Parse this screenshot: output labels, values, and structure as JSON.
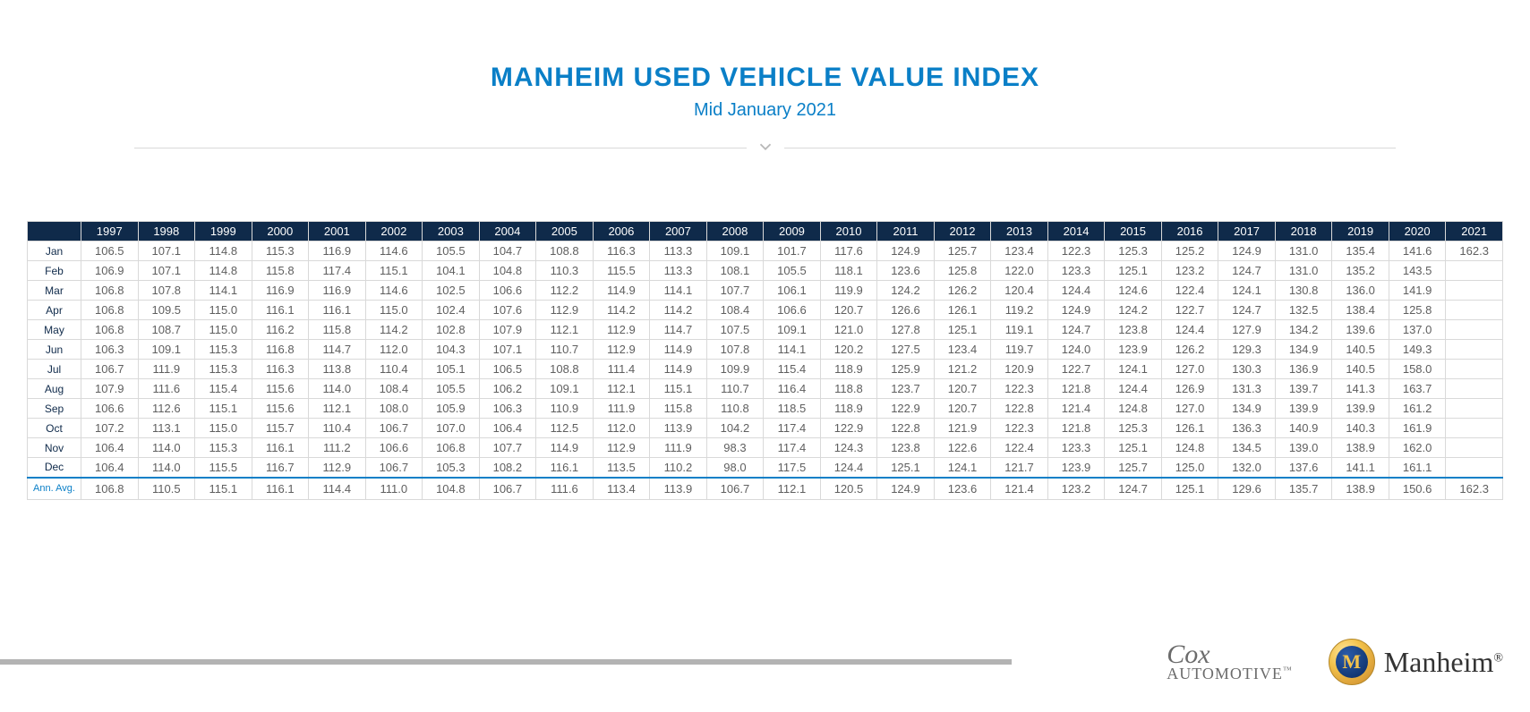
{
  "colors": {
    "title": "#0a7fc7",
    "subtitle": "#0a7fc7",
    "header_bg": "#0f2a4a",
    "header_fg": "#ffffff",
    "row_label": "#0f2a4a",
    "cell_text": "#5f5f5f",
    "avg_label": "#0a7fc7",
    "grid": "#d9d9d9"
  },
  "header": {
    "title": "MANHEIM USED VEHICLE VALUE INDEX",
    "subtitle": "Mid January 2021"
  },
  "table": {
    "years": [
      "1997",
      "1998",
      "1999",
      "2000",
      "2001",
      "2002",
      "2003",
      "2004",
      "2005",
      "2006",
      "2007",
      "2008",
      "2009",
      "2010",
      "2011",
      "2012",
      "2013",
      "2014",
      "2015",
      "2016",
      "2017",
      "2018",
      "2019",
      "2020",
      "2021"
    ],
    "row_labels": [
      "Jan",
      "Feb",
      "Mar",
      "Apr",
      "May",
      "Jun",
      "Jul",
      "Aug",
      "Sep",
      "Oct",
      "Nov",
      "Dec"
    ],
    "rows": [
      [
        "106.5",
        "107.1",
        "114.8",
        "115.3",
        "116.9",
        "114.6",
        "105.5",
        "104.7",
        "108.8",
        "116.3",
        "113.3",
        "109.1",
        "101.7",
        "117.6",
        "124.9",
        "125.7",
        "123.4",
        "122.3",
        "125.3",
        "125.2",
        "124.9",
        "131.0",
        "135.4",
        "141.6",
        "162.3"
      ],
      [
        "106.9",
        "107.1",
        "114.8",
        "115.8",
        "117.4",
        "115.1",
        "104.1",
        "104.8",
        "110.3",
        "115.5",
        "113.3",
        "108.1",
        "105.5",
        "118.1",
        "123.6",
        "125.8",
        "122.0",
        "123.3",
        "125.1",
        "123.2",
        "124.7",
        "131.0",
        "135.2",
        "143.5",
        ""
      ],
      [
        "106.8",
        "107.8",
        "114.1",
        "116.9",
        "116.9",
        "114.6",
        "102.5",
        "106.6",
        "112.2",
        "114.9",
        "114.1",
        "107.7",
        "106.1",
        "119.9",
        "124.2",
        "126.2",
        "120.4",
        "124.4",
        "124.6",
        "122.4",
        "124.1",
        "130.8",
        "136.0",
        "141.9",
        ""
      ],
      [
        "106.8",
        "109.5",
        "115.0",
        "116.1",
        "116.1",
        "115.0",
        "102.4",
        "107.6",
        "112.9",
        "114.2",
        "114.2",
        "108.4",
        "106.6",
        "120.7",
        "126.6",
        "126.1",
        "119.2",
        "124.9",
        "124.2",
        "122.7",
        "124.7",
        "132.5",
        "138.4",
        "125.8",
        ""
      ],
      [
        "106.8",
        "108.7",
        "115.0",
        "116.2",
        "115.8",
        "114.2",
        "102.8",
        "107.9",
        "112.1",
        "112.9",
        "114.7",
        "107.5",
        "109.1",
        "121.0",
        "127.8",
        "125.1",
        "119.1",
        "124.7",
        "123.8",
        "124.4",
        "127.9",
        "134.2",
        "139.6",
        "137.0",
        ""
      ],
      [
        "106.3",
        "109.1",
        "115.3",
        "116.8",
        "114.7",
        "112.0",
        "104.3",
        "107.1",
        "110.7",
        "112.9",
        "114.9",
        "107.8",
        "114.1",
        "120.2",
        "127.5",
        "123.4",
        "119.7",
        "124.0",
        "123.9",
        "126.2",
        "129.3",
        "134.9",
        "140.5",
        "149.3",
        ""
      ],
      [
        "106.7",
        "111.9",
        "115.3",
        "116.3",
        "113.8",
        "110.4",
        "105.1",
        "106.5",
        "108.8",
        "111.4",
        "114.9",
        "109.9",
        "115.4",
        "118.9",
        "125.9",
        "121.2",
        "120.9",
        "122.7",
        "124.1",
        "127.0",
        "130.3",
        "136.9",
        "140.5",
        "158.0",
        ""
      ],
      [
        "107.9",
        "111.6",
        "115.4",
        "115.6",
        "114.0",
        "108.4",
        "105.5",
        "106.2",
        "109.1",
        "112.1",
        "115.1",
        "110.7",
        "116.4",
        "118.8",
        "123.7",
        "120.7",
        "122.3",
        "121.8",
        "124.4",
        "126.9",
        "131.3",
        "139.7",
        "141.3",
        "163.7",
        ""
      ],
      [
        "106.6",
        "112.6",
        "115.1",
        "115.6",
        "112.1",
        "108.0",
        "105.9",
        "106.3",
        "110.9",
        "111.9",
        "115.8",
        "110.8",
        "118.5",
        "118.9",
        "122.9",
        "120.7",
        "122.8",
        "121.4",
        "124.8",
        "127.0",
        "134.9",
        "139.9",
        "139.9",
        "161.2",
        ""
      ],
      [
        "107.2",
        "113.1",
        "115.0",
        "115.7",
        "110.4",
        "106.7",
        "107.0",
        "106.4",
        "112.5",
        "112.0",
        "113.9",
        "104.2",
        "117.4",
        "122.9",
        "122.8",
        "121.9",
        "122.3",
        "121.8",
        "125.3",
        "126.1",
        "136.3",
        "140.9",
        "140.3",
        "161.9",
        ""
      ],
      [
        "106.4",
        "114.0",
        "115.3",
        "116.1",
        "111.2",
        "106.6",
        "106.8",
        "107.7",
        "114.9",
        "112.9",
        "111.9",
        "98.3",
        "117.4",
        "124.3",
        "123.8",
        "122.6",
        "122.4",
        "123.3",
        "125.1",
        "124.8",
        "134.5",
        "139.0",
        "138.9",
        "162.0",
        ""
      ],
      [
        "106.4",
        "114.0",
        "115.5",
        "116.7",
        "112.9",
        "106.7",
        "105.3",
        "108.2",
        "116.1",
        "113.5",
        "110.2",
        "98.0",
        "117.5",
        "124.4",
        "125.1",
        "124.1",
        "121.7",
        "123.9",
        "125.7",
        "125.0",
        "132.0",
        "137.6",
        "141.1",
        "161.1",
        ""
      ]
    ],
    "avg_label": "Ann. Avg.",
    "avg_row": [
      "106.8",
      "110.5",
      "115.1",
      "116.1",
      "114.4",
      "111.0",
      "104.8",
      "106.7",
      "111.6",
      "113.4",
      "113.9",
      "106.7",
      "112.1",
      "120.5",
      "124.9",
      "123.6",
      "121.4",
      "123.2",
      "124.7",
      "125.1",
      "129.6",
      "135.7",
      "138.9",
      "150.6",
      "162.3"
    ]
  },
  "footer": {
    "cox_top": "Cox",
    "cox_bottom": "AUTOMOTIVE",
    "manheim_text": "Manheim",
    "badge_letter": "M"
  }
}
